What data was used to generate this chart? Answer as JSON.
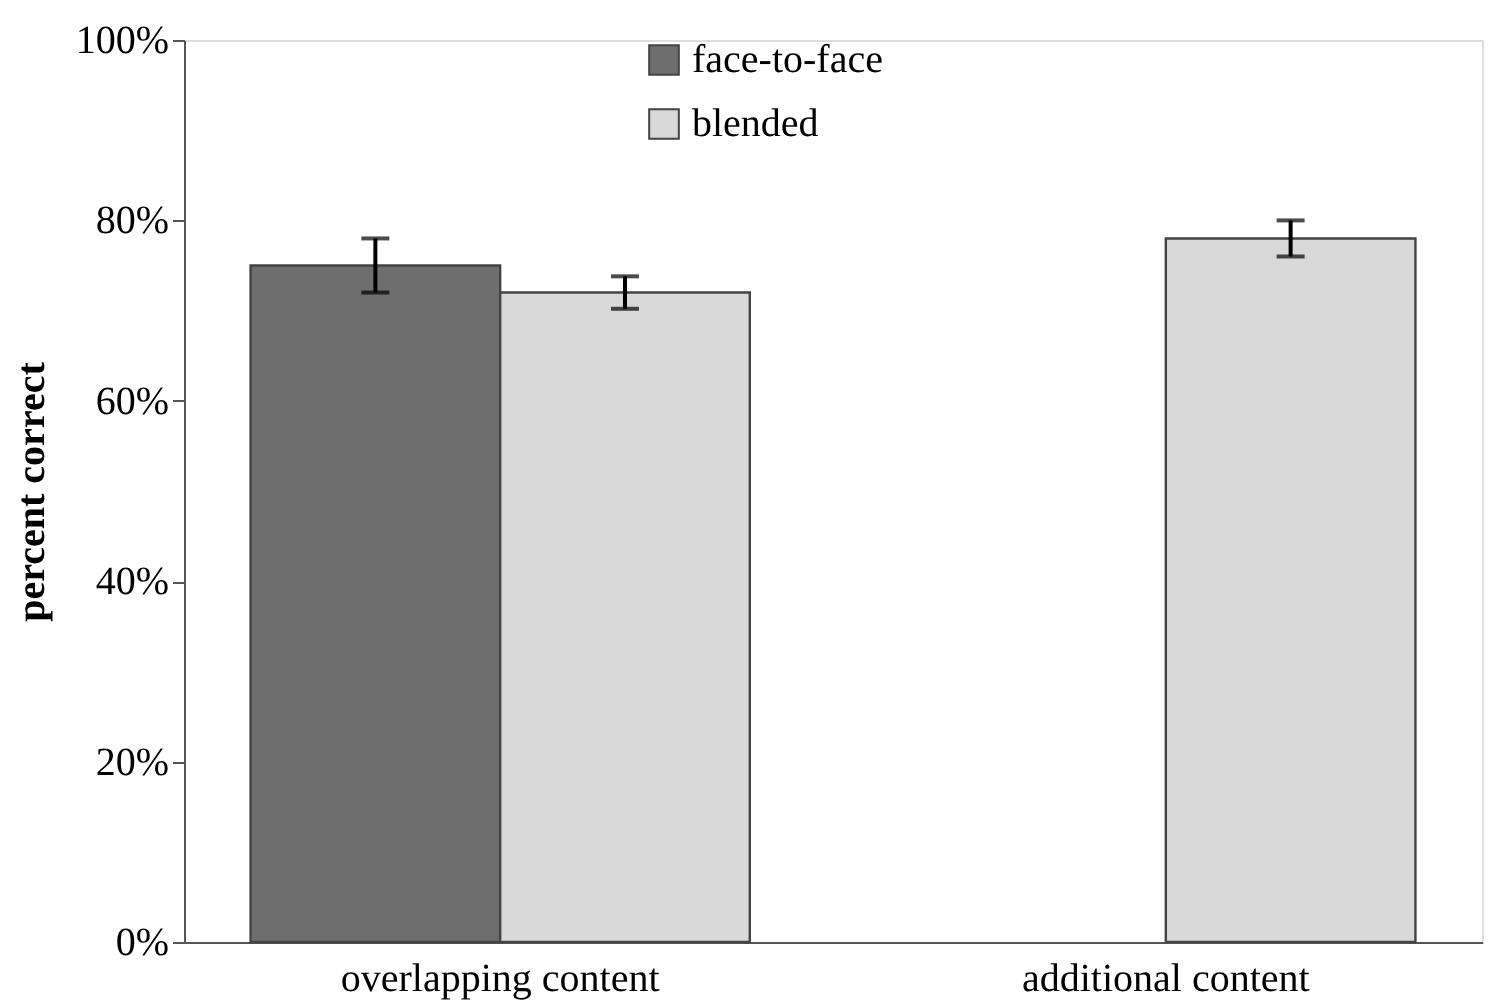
{
  "chart_data": {
    "type": "bar",
    "ylabel": "percent correct",
    "categories": [
      "overlapping content",
      "additional content"
    ],
    "series": [
      {
        "name": "face-to-face",
        "color": "#6e6e6e",
        "values": [
          75,
          null
        ],
        "errors": [
          3,
          null
        ]
      },
      {
        "name": "blended",
        "color": "#d9d9d9",
        "values": [
          72,
          78
        ],
        "errors": [
          1.8,
          2
        ]
      }
    ],
    "ylim": [
      0,
      100
    ],
    "yticks": [
      {
        "value": 0,
        "label": "0%"
      },
      {
        "value": 20,
        "label": "20%"
      },
      {
        "value": 40,
        "label": "40%"
      },
      {
        "value": 60,
        "label": "60%"
      },
      {
        "value": 80,
        "label": "80%"
      },
      {
        "value": 100,
        "label": "100%"
      }
    ],
    "grid": false,
    "legend": "top"
  }
}
